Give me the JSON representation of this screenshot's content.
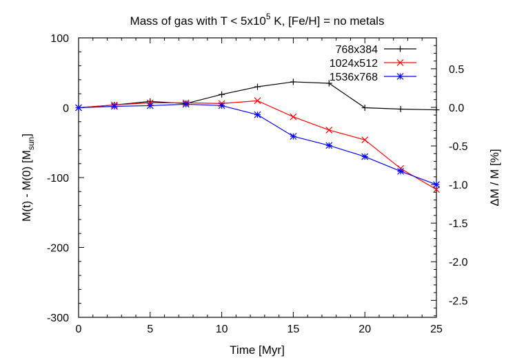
{
  "chart_data": {
    "type": "line",
    "title": {
      "prefix": "Mass of gas with T < 5x10",
      "superscript": "5",
      "suffix": " K, [Fe/H] = no metals"
    },
    "xlabel": "Time [Myr]",
    "ylabel": {
      "main": "M(t) - M(0)   [M",
      "subscript": "sun",
      "close": "]"
    },
    "y2label": "ΔM / M  [%]",
    "xlim": [
      0,
      25
    ],
    "ylim": [
      -300,
      100
    ],
    "y2lim": [
      -2.72,
      0.9
    ],
    "x_ticks": [
      0,
      5,
      10,
      15,
      20,
      25
    ],
    "y_ticks": [
      100,
      0,
      -100,
      -200,
      -300
    ],
    "y2_ticks": [
      0.5,
      0.0,
      -0.5,
      -1.0,
      -1.5,
      -2.0,
      -2.5
    ],
    "grid": false,
    "legend_position": "top-right",
    "series": [
      {
        "name": "768x384",
        "color": "#000000",
        "marker": "plus",
        "x": [
          0,
          2.5,
          5,
          7.5,
          10,
          12.5,
          15,
          17.5,
          20,
          22.5,
          25
        ],
        "y": [
          0,
          4,
          9,
          6,
          19,
          30,
          37,
          35,
          0,
          -2,
          -3
        ]
      },
      {
        "name": "1024x512",
        "color": "#ff0000",
        "marker": "cross",
        "x": [
          0,
          2.5,
          5,
          7.5,
          10,
          12.5,
          15,
          17.5,
          20,
          22.5,
          25
        ],
        "y": [
          0,
          4,
          7,
          7,
          6,
          10,
          -13,
          -32,
          -46,
          -87,
          -117
        ]
      },
      {
        "name": "1536x768",
        "color": "#0000ff",
        "marker": "asterisk",
        "x": [
          0,
          2.5,
          5,
          7.5,
          10,
          12.5,
          15,
          17.5,
          20,
          22.5,
          25
        ],
        "y": [
          0,
          2,
          3,
          5,
          3,
          -10,
          -41,
          -54,
          -70,
          -91,
          -110
        ]
      }
    ]
  }
}
